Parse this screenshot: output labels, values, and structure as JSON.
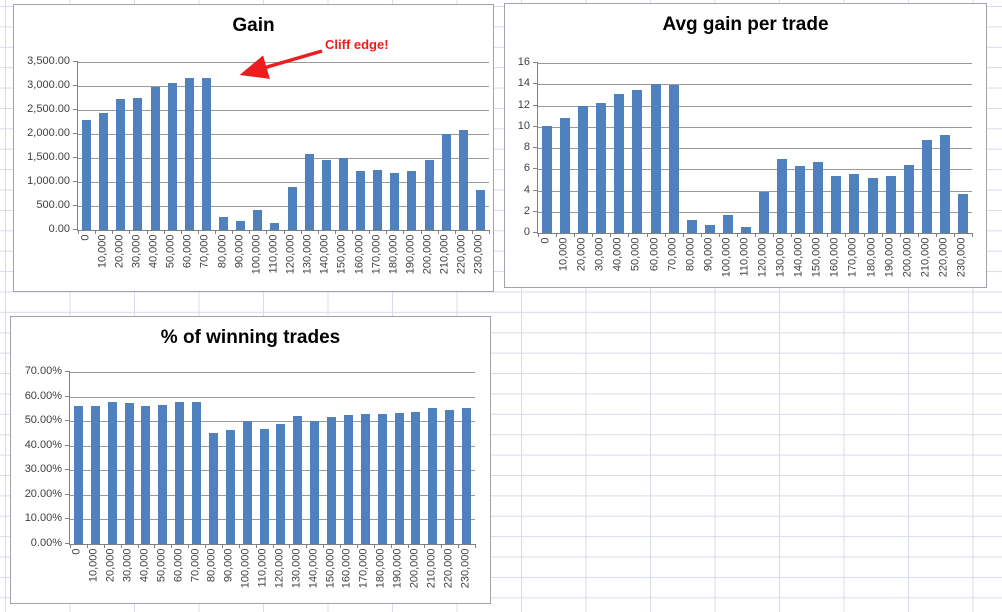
{
  "sheet": {
    "kind": "excel-worksheet-with-embedded-charts"
  },
  "colors": {
    "bar": "#4f81bd",
    "grid": "#d8dce8",
    "plotgrid": "#9a9a9a",
    "axis": "#808080",
    "axistext": "#3f3f3f",
    "border": "#a0a4aa",
    "red": "#ee1c1c"
  },
  "chart_data": [
    {
      "type": "bar",
      "title": "Gain",
      "xlabel": "",
      "ylabel": "",
      "ylim": [
        0,
        3500
      ],
      "ymax": 3500,
      "grid": true,
      "legend": "none",
      "yticks": [
        "0.00",
        "500.00",
        "1,000.00",
        "1,500.00",
        "2,000.00",
        "2,500.00",
        "3,000.00",
        "3,500.00"
      ],
      "categories": [
        "0",
        "10,000",
        "20,000",
        "30,000",
        "40,000",
        "50,000",
        "60,000",
        "70,000",
        "80,000",
        "90,000",
        "100,000",
        "110,000",
        "120,000",
        "130,000",
        "140,000",
        "150,000",
        "160,000",
        "170,000",
        "180,000",
        "190,000",
        "200,000",
        "210,000",
        "220,000",
        "230,000"
      ],
      "values": [
        2300,
        2430,
        2720,
        2760,
        2970,
        3060,
        3160,
        3160,
        270,
        180,
        410,
        140,
        890,
        1590,
        1460,
        1500,
        1220,
        1260,
        1190,
        1220,
        1460,
        1990,
        2090,
        840
      ],
      "annotation": {
        "text": "Cliff edge!",
        "color": "#ee1c1c"
      }
    },
    {
      "type": "bar",
      "title": "Avg gain per trade",
      "xlabel": "",
      "ylabel": "",
      "ylim": [
        0,
        16
      ],
      "ymax": 16,
      "grid": true,
      "legend": "none",
      "yticks": [
        "0",
        "2",
        "4",
        "6",
        "8",
        "10",
        "12",
        "14",
        "16"
      ],
      "categories": [
        "0",
        "10,000",
        "20,000",
        "30,000",
        "40,000",
        "50,000",
        "60,000",
        "70,000",
        "80,000",
        "90,000",
        "100,000",
        "110,000",
        "120,000",
        "130,000",
        "140,000",
        "150,000",
        "160,000",
        "170,000",
        "180,000",
        "190,000",
        "200,000",
        "210,000",
        "220,000",
        "230,000"
      ],
      "values": [
        10.1,
        10.8,
        12.0,
        12.2,
        13.1,
        13.5,
        14.0,
        13.9,
        1.2,
        0.8,
        1.7,
        0.6,
        3.9,
        7.0,
        6.3,
        6.7,
        5.4,
        5.6,
        5.2,
        5.4,
        6.4,
        8.8,
        9.2,
        3.7
      ]
    },
    {
      "type": "bar",
      "title": "% of winning trades",
      "xlabel": "",
      "ylabel": "",
      "ylim": [
        0,
        70
      ],
      "ymax": 70,
      "grid": true,
      "legend": "none",
      "yticks": [
        "0.00%",
        "10.00%",
        "20.00%",
        "30.00%",
        "40.00%",
        "50.00%",
        "60.00%",
        "70.00%"
      ],
      "categories": [
        "0",
        "10,000",
        "20,000",
        "30,000",
        "40,000",
        "50,000",
        "60,000",
        "70,000",
        "80,000",
        "90,000",
        "100,000",
        "110,000",
        "120,000",
        "130,000",
        "140,000",
        "150,000",
        "160,000",
        "170,000",
        "180,000",
        "190,000",
        "200,000",
        "210,000",
        "220,000",
        "230,000"
      ],
      "values": [
        56.0,
        56.0,
        57.6,
        57.3,
        56.0,
        56.5,
        57.6,
        57.8,
        45.3,
        46.4,
        50.0,
        47.0,
        49.0,
        52.2,
        50.1,
        51.8,
        52.4,
        53.0,
        52.8,
        53.2,
        53.6,
        55.5,
        54.5,
        55.2
      ]
    }
  ]
}
